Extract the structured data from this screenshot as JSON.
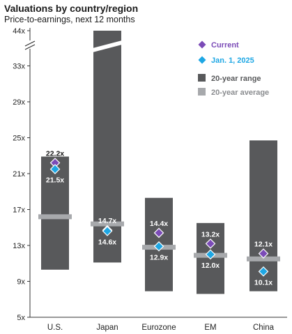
{
  "header": {
    "title": "Valuations by country/region",
    "subtitle": "Price-to-earnings, next 12 months"
  },
  "chart_data": {
    "type": "range-bar",
    "title": "Valuations by country/region",
    "subtitle": "Price-to-earnings, next 12 months",
    "categories": [
      "U.S.",
      "Japan",
      "Eurozone",
      "EM",
      "China"
    ],
    "range_low": [
      10.3,
      11.1,
      7.9,
      7.6,
      7.9
    ],
    "range_high": [
      22.9,
      44,
      18.3,
      15.5,
      24.7
    ],
    "average": [
      16.2,
      15.4,
      12.8,
      11.9,
      11.5
    ],
    "current": [
      22.2,
      14.7,
      14.4,
      13.2,
      12.1
    ],
    "jan_2025": [
      21.5,
      14.6,
      12.9,
      12.0,
      10.1
    ],
    "current_labels": [
      "22.2x",
      "14.7x",
      "14.4x",
      "13.2x",
      "12.1x"
    ],
    "jan_labels": [
      "21.5x",
      "14.6x",
      "12.9x",
      "12.0x",
      "10.1x"
    ],
    "y_ticks": [
      5,
      9,
      13,
      17,
      21,
      25,
      29,
      33,
      44
    ],
    "y_tick_labels": [
      "5x",
      "9x",
      "13x",
      "17x",
      "21x",
      "25x",
      "29x",
      "33x",
      "44x"
    ],
    "ylim": [
      5,
      44
    ],
    "axis_break": "between 33x and 44x",
    "legend": {
      "current": "Current",
      "jan": "Jan. 1, 2025",
      "range": "20-year range",
      "average": "20-year average"
    },
    "legend_position": "top-right",
    "colors": {
      "range": "#58595b",
      "average": "#a7a9ac",
      "current": "#7b4bb7",
      "jan": "#1ea7e4",
      "label_current_light": "#ffffff",
      "label_dark": "#1a1a1a"
    }
  }
}
